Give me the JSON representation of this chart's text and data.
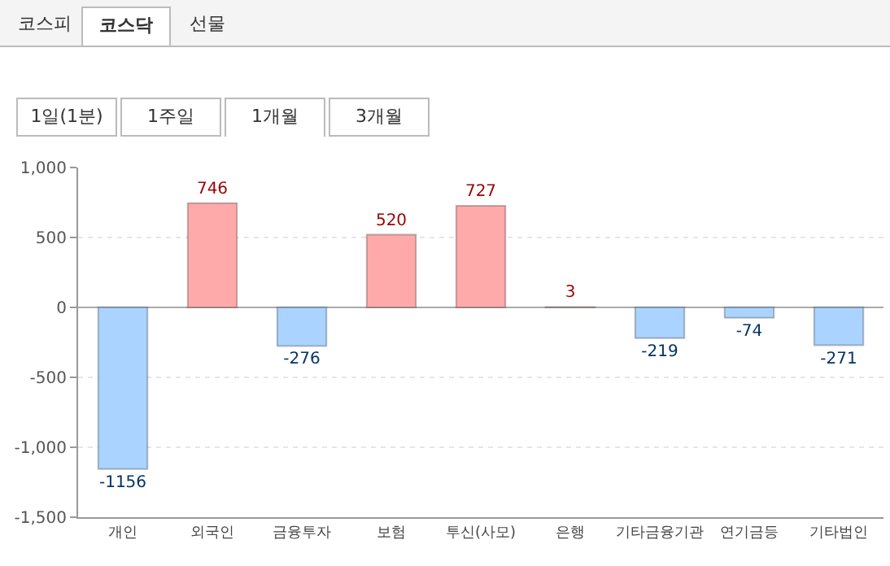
{
  "chart_data": {
    "type": "bar",
    "categories": [
      "개인",
      "외국인",
      "금융투자",
      "보험",
      "투신(사모)",
      "은행",
      "기타금융기관",
      "연기금등",
      "기타법인"
    ],
    "values": [
      -1156,
      746,
      -276,
      520,
      727,
      3,
      -219,
      -74,
      -271
    ],
    "colors": [
      "#aad4ff",
      "#ffaaaa",
      "#aad4ff",
      "#ffaaaa",
      "#ffaaaa",
      "#ffaaaa",
      "#aad4ff",
      "#aad4ff",
      "#aad4ff"
    ],
    "ylim": [
      -1500,
      1000
    ],
    "yticks": [
      {
        "value": 1000,
        "label": "1,000"
      },
      500,
      0,
      -500,
      {
        "value": -1000,
        "label": "-1,000"
      },
      {
        "value": -1500,
        "label": "-1,500"
      }
    ],
    "grid": "y",
    "data_labels": true,
    "annotations": [
      "코스피",
      "코스닥",
      "선물",
      "1일(1분)",
      "1주일",
      "1개월",
      "3개월"
    ]
  }
}
